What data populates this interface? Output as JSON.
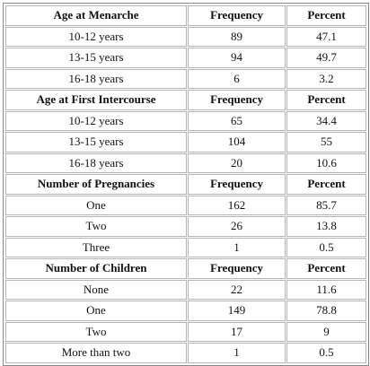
{
  "sections": [
    {
      "header": [
        "Age at Menarche",
        "Frequency",
        "Percent"
      ],
      "rows": [
        [
          "10-12 years",
          89,
          47.1
        ],
        [
          "13-15 years",
          94,
          49.7
        ],
        [
          "16-18 years",
          6,
          3.2
        ]
      ]
    },
    {
      "header": [
        "Age at First Intercourse",
        "Frequency",
        "Percent"
      ],
      "rows": [
        [
          "10-12 years",
          65,
          34.4
        ],
        [
          "13-15 years",
          104,
          55
        ],
        [
          "16-18 years",
          20,
          10.6
        ]
      ]
    },
    {
      "header": [
        "Number of Pregnancies",
        "Frequency",
        "Percent"
      ],
      "rows": [
        [
          "One",
          162,
          85.7
        ],
        [
          "Two",
          26,
          13.8
        ],
        [
          "Three",
          1,
          0.5
        ]
      ]
    },
    {
      "header": [
        "Number of Children",
        "Frequency",
        "Percent"
      ],
      "rows": [
        [
          "None",
          22,
          11.6
        ],
        [
          "One",
          149,
          78.8
        ],
        [
          "Two",
          17,
          9
        ],
        [
          "More than two",
          1,
          0.5
        ]
      ]
    }
  ]
}
